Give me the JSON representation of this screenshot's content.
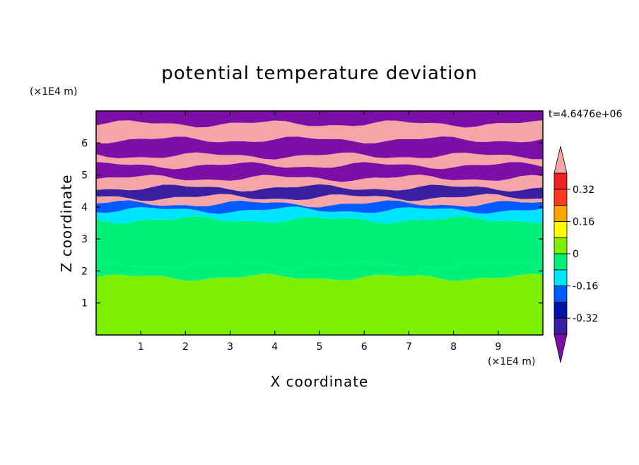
{
  "chart_data": {
    "type": "heatmap",
    "title": "potential temperature deviation",
    "xlabel": "X coordinate",
    "ylabel": "Z coordinate",
    "x_unit_label": "(×1E4 m)",
    "y_unit_label": "(×1E4 m)",
    "time_label": "t=4.6476e+06",
    "xlim": [
      0,
      10
    ],
    "ylim": [
      0,
      7
    ],
    "x_ticks": [
      "1",
      "2",
      "3",
      "4",
      "5",
      "6",
      "7",
      "8",
      "9"
    ],
    "y_ticks": [
      "1",
      "2",
      "3",
      "4",
      "5",
      "6"
    ],
    "colorbar": {
      "ticks": [
        "0.32",
        "0.16",
        "0",
        "-0.16",
        "-0.32"
      ],
      "tick_values": [
        0.32,
        0.16,
        0,
        -0.16,
        -0.32
      ],
      "levels": [
        -0.4,
        -0.32,
        -0.24,
        -0.16,
        -0.08,
        0,
        0.08,
        0.16,
        0.24,
        0.32,
        0.4
      ],
      "colors": [
        "#7b0fa6",
        "#3a1fa3",
        "#0014aa",
        "#005cff",
        "#00e5ff",
        "#00f07a",
        "#7cf000",
        "#ffff00",
        "#ffa500",
        "#ff3a20",
        "#ee2020",
        "#f5a5a5"
      ],
      "under_color": "#7b0fa6",
      "over_color": "#f5a5a5"
    },
    "bands": [
      {
        "z": [
          0.0,
          1.8
        ],
        "value": 0.02
      },
      {
        "z": [
          1.8,
          2.2
        ],
        "value": -0.02
      },
      {
        "z": [
          2.2,
          3.6
        ],
        "value": -0.03
      },
      {
        "z": [
          3.6,
          3.9
        ],
        "value": -0.12
      },
      {
        "z": [
          3.9,
          4.1
        ],
        "value": -0.2
      },
      {
        "z": [
          4.1,
          4.3
        ],
        "value": 0.45
      },
      {
        "z": [
          4.3,
          4.6
        ],
        "value": -0.35
      },
      {
        "z": [
          4.6,
          4.9
        ],
        "value": 0.45
      },
      {
        "z": [
          4.9,
          5.3
        ],
        "value": -0.45
      },
      {
        "z": [
          5.3,
          5.6
        ],
        "value": 0.45
      },
      {
        "z": [
          5.6,
          6.1
        ],
        "value": -0.45
      },
      {
        "z": [
          6.1,
          6.6
        ],
        "value": 0.45
      },
      {
        "z": [
          6.6,
          7.0
        ],
        "value": -0.45
      }
    ],
    "grid": false,
    "legend": "colorbar right"
  }
}
